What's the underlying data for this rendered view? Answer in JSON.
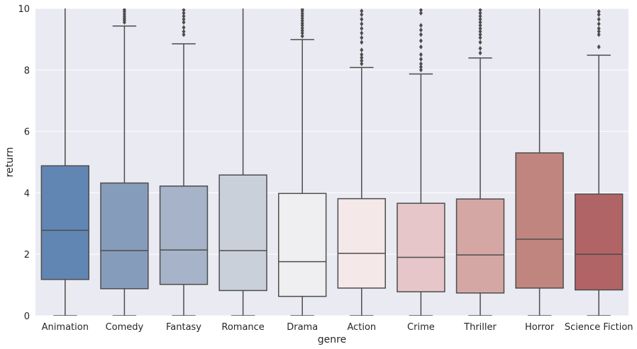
{
  "chart_data": {
    "type": "box",
    "xlabel": "genre",
    "ylabel": "return",
    "ylim": [
      0,
      10
    ],
    "yticks": [
      0,
      2,
      4,
      6,
      8,
      10
    ],
    "grid": true,
    "background": "#eaeaf2",
    "grid_color": "#ffffff",
    "line_color": "#4d4d4d",
    "categories": [
      "Animation",
      "Comedy",
      "Fantasy",
      "Romance",
      "Drama",
      "Action",
      "Crime",
      "Thriller",
      "Horror",
      "Science Fiction"
    ],
    "boxes": [
      {
        "category": "Animation",
        "whisker_low": 0,
        "q1": 1.18,
        "median": 2.78,
        "q3": 4.88,
        "whisker_high": 10.5,
        "outliers": [],
        "color": "#6186b3"
      },
      {
        "category": "Comedy",
        "whisker_low": 0,
        "q1": 0.88,
        "median": 2.12,
        "q3": 4.32,
        "whisker_high": 9.43,
        "outliers": [
          9.55,
          9.62,
          9.68,
          9.75,
          9.82,
          9.9,
          9.96
        ],
        "color": "#869cbb"
      },
      {
        "category": "Fantasy",
        "whisker_low": 0,
        "q1": 1.02,
        "median": 2.14,
        "q3": 4.22,
        "whisker_high": 8.85,
        "outliers": [
          9.15,
          9.25,
          9.38,
          9.55,
          9.65,
          9.75,
          9.85,
          9.95
        ],
        "color": "#a6b3c8"
      },
      {
        "category": "Romance",
        "whisker_low": 0,
        "q1": 0.82,
        "median": 2.12,
        "q3": 4.58,
        "whisker_high": 10.5,
        "outliers": [],
        "color": "#cad0da"
      },
      {
        "category": "Drama",
        "whisker_low": 0,
        "q1": 0.63,
        "median": 1.76,
        "q3": 3.98,
        "whisker_high": 8.99,
        "outliers": [
          9.1,
          9.2,
          9.28,
          9.36,
          9.45,
          9.52,
          9.6,
          9.68,
          9.76,
          9.84,
          9.92,
          9.98
        ],
        "color": "#efeff1"
      },
      {
        "category": "Action",
        "whisker_low": 0,
        "q1": 0.9,
        "median": 2.03,
        "q3": 3.81,
        "whisker_high": 8.08,
        "outliers": [
          8.2,
          8.3,
          8.4,
          8.5,
          8.65,
          8.9,
          9.05,
          9.2,
          9.35,
          9.5,
          9.65,
          9.8,
          9.92
        ],
        "color": "#f5e8e8"
      },
      {
        "category": "Crime",
        "whisker_low": 0,
        "q1": 0.78,
        "median": 1.9,
        "q3": 3.66,
        "whisker_high": 7.87,
        "outliers": [
          8.0,
          8.1,
          8.2,
          8.35,
          8.5,
          8.75,
          8.95,
          9.15,
          9.3,
          9.45,
          9.85,
          9.95
        ],
        "color": "#e6c6c8"
      },
      {
        "category": "Thriller",
        "whisker_low": 0,
        "q1": 0.74,
        "median": 1.98,
        "q3": 3.8,
        "whisker_high": 8.39,
        "outliers": [
          8.55,
          8.7,
          8.9,
          9.05,
          9.15,
          9.25,
          9.35,
          9.45,
          9.55,
          9.65,
          9.75,
          9.85,
          9.95
        ],
        "color": "#d4a7a5"
      },
      {
        "category": "Horror",
        "whisker_low": 0,
        "q1": 0.9,
        "median": 2.49,
        "q3": 5.3,
        "whisker_high": 10.5,
        "outliers": [],
        "color": "#c1857f"
      },
      {
        "category": "Science Fiction",
        "whisker_low": 0,
        "q1": 0.84,
        "median": 2.0,
        "q3": 3.96,
        "whisker_high": 8.48,
        "outliers": [
          8.75,
          9.15,
          9.25,
          9.35,
          9.5,
          9.65,
          9.8,
          9.9
        ],
        "color": "#b16466"
      }
    ]
  }
}
